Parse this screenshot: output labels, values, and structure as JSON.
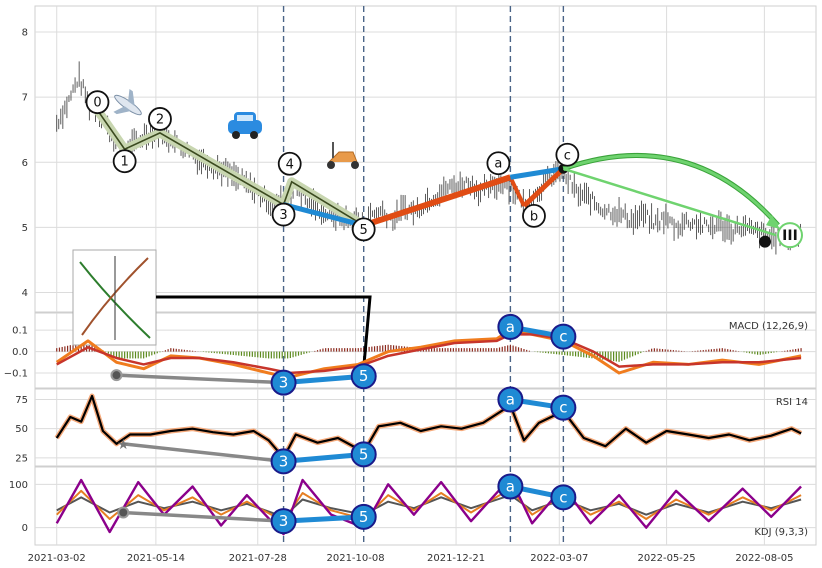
{
  "chart_data": {
    "type": "line",
    "panels": [
      {
        "id": "price",
        "ylim": [
          3.7,
          8.4
        ],
        "yticks": [
          4,
          5,
          6,
          7,
          8
        ]
      },
      {
        "id": "macd",
        "label": "MACD (12,26,9)",
        "ylim": [
          -0.17,
          0.18
        ],
        "yticks": [
          0.1,
          0.0,
          -0.1
        ],
        "ytick_labels": [
          "0.1",
          "0.0",
          "−0.1"
        ]
      },
      {
        "id": "rsi",
        "label": "RSI 14",
        "ylim": [
          18,
          84
        ],
        "yticks": [
          75,
          50,
          25
        ]
      },
      {
        "id": "kdj",
        "label": "KDJ (9,3,3)",
        "ylim": [
          -40,
          140
        ],
        "yticks": [
          100,
          0
        ]
      }
    ],
    "x_range": [
      "2021-02-14",
      "2022-09-12"
    ],
    "x_ticks": [
      "2021-03-02",
      "2021-05-14",
      "2021-07-28",
      "2021-10-08",
      "2021-12-21",
      "2022-03-07",
      "2022-05-25",
      "2022-08-05"
    ],
    "vlines": [
      "2021-08-16",
      "2021-10-14",
      "2022-01-30",
      "2022-03-10"
    ],
    "grid": true,
    "price_series": [
      [
        "2021-03-02",
        6.6
      ],
      [
        "2021-03-10",
        6.9
      ],
      [
        "2021-03-18",
        7.3
      ],
      [
        "2021-03-26",
        6.9
      ],
      [
        "2021-04-03",
        6.8
      ],
      [
        "2021-04-11",
        6.4
      ],
      [
        "2021-04-19",
        6.2
      ],
      [
        "2021-04-27",
        6.25
      ],
      [
        "2021-05-05",
        6.4
      ],
      [
        "2021-05-13",
        6.5
      ],
      [
        "2021-05-21",
        6.4
      ],
      [
        "2021-05-29",
        6.3
      ],
      [
        "2021-06-06",
        6.2
      ],
      [
        "2021-06-14",
        6.05
      ],
      [
        "2021-06-22",
        6.0
      ],
      [
        "2021-06-30",
        5.9
      ],
      [
        "2021-07-08",
        5.8
      ],
      [
        "2021-07-16",
        5.7
      ],
      [
        "2021-07-24",
        5.6
      ],
      [
        "2021-08-01",
        5.45
      ],
      [
        "2021-08-09",
        5.35
      ],
      [
        "2021-08-17",
        5.5
      ],
      [
        "2021-08-25",
        5.6
      ],
      [
        "2021-09-02",
        5.4
      ],
      [
        "2021-09-10",
        5.3
      ],
      [
        "2021-09-18",
        5.2
      ],
      [
        "2021-09-26",
        5.15
      ],
      [
        "2021-10-04",
        5.1
      ],
      [
        "2021-10-12",
        5.05
      ],
      [
        "2021-10-20",
        5.2
      ],
      [
        "2021-10-28",
        5.25
      ],
      [
        "2021-11-05",
        5.1
      ],
      [
        "2021-11-13",
        5.3
      ],
      [
        "2021-11-21",
        5.25
      ],
      [
        "2021-11-29",
        5.4
      ],
      [
        "2021-12-07",
        5.5
      ],
      [
        "2021-12-15",
        5.6
      ],
      [
        "2021-12-23",
        5.65
      ],
      [
        "2021-12-31",
        5.7
      ],
      [
        "2022-01-08",
        5.55
      ],
      [
        "2022-01-16",
        5.6
      ],
      [
        "2022-01-24",
        5.7
      ],
      [
        "2022-02-01",
        5.6
      ],
      [
        "2022-02-09",
        5.35
      ],
      [
        "2022-02-17",
        5.5
      ],
      [
        "2022-02-25",
        5.7
      ],
      [
        "2022-03-05",
        5.85
      ],
      [
        "2022-03-13",
        5.75
      ],
      [
        "2022-03-21",
        5.5
      ],
      [
        "2022-03-29",
        5.45
      ],
      [
        "2022-04-06",
        5.3
      ],
      [
        "2022-04-14",
        5.25
      ],
      [
        "2022-04-22",
        5.2
      ],
      [
        "2022-04-30",
        5.1
      ],
      [
        "2022-05-08",
        5.2
      ],
      [
        "2022-05-16",
        5.05
      ],
      [
        "2022-05-24",
        5.15
      ],
      [
        "2022-06-01",
        5.0
      ],
      [
        "2022-06-09",
        5.1
      ],
      [
        "2022-06-17",
        5.05
      ],
      [
        "2022-06-25",
        5.0
      ],
      [
        "2022-07-03",
        5.05
      ],
      [
        "2022-07-11",
        4.95
      ],
      [
        "2022-07-19",
        5.0
      ],
      [
        "2022-07-27",
        4.95
      ],
      [
        "2022-08-04",
        4.9
      ],
      [
        "2022-08-12",
        4.85
      ],
      [
        "2022-08-20",
        4.8
      ],
      [
        "2022-08-28",
        4.85
      ],
      [
        "2022-09-01",
        4.9
      ]
    ],
    "wave_points": [
      {
        "label": "0",
        "date": "2021-04-01",
        "value": 6.8
      },
      {
        "label": "1",
        "date": "2021-04-21",
        "value": 6.2
      },
      {
        "label": "2",
        "date": "2021-05-17",
        "value": 6.45
      },
      {
        "label": "3",
        "date": "2021-08-16",
        "value": 5.35
      },
      {
        "label": "4",
        "date": "2021-08-22",
        "value": 5.7
      },
      {
        "label": "5",
        "date": "2021-10-14",
        "value": 5.03
      },
      {
        "label": "a",
        "date": "2022-01-30",
        "value": 5.77
      },
      {
        "label": "b",
        "date": "2022-02-09",
        "value": 5.33
      },
      {
        "label": "c",
        "date": "2022-03-10",
        "value": 5.9
      }
    ],
    "macd": {
      "macd_line": [
        [
          "2021-03-02",
          -0.05
        ],
        [
          "2021-03-25",
          0.05
        ],
        [
          "2021-04-15",
          -0.05
        ],
        [
          "2021-05-05",
          -0.08
        ],
        [
          "2021-05-25",
          -0.02
        ],
        [
          "2021-06-15",
          -0.03
        ],
        [
          "2021-07-10",
          -0.06
        ],
        [
          "2021-08-05",
          -0.1
        ],
        [
          "2021-08-20",
          -0.12
        ],
        [
          "2021-09-15",
          -0.08
        ],
        [
          "2021-10-10",
          -0.06
        ],
        [
          "2021-11-01",
          0.0
        ],
        [
          "2021-11-25",
          0.02
        ],
        [
          "2021-12-20",
          0.05
        ],
        [
          "2022-01-20",
          0.06
        ],
        [
          "2022-01-30",
          0.1
        ],
        [
          "2022-02-15",
          0.08
        ],
        [
          "2022-03-10",
          0.05
        ],
        [
          "2022-04-01",
          -0.02
        ],
        [
          "2022-04-20",
          -0.1
        ],
        [
          "2022-05-15",
          -0.05
        ],
        [
          "2022-06-10",
          -0.06
        ],
        [
          "2022-07-05",
          -0.04
        ],
        [
          "2022-08-01",
          -0.06
        ],
        [
          "2022-09-01",
          -0.02
        ]
      ],
      "signal_line": [
        [
          "2021-03-02",
          -0.06
        ],
        [
          "2021-03-25",
          0.02
        ],
        [
          "2021-04-15",
          -0.03
        ],
        [
          "2021-05-05",
          -0.06
        ],
        [
          "2021-05-25",
          -0.03
        ],
        [
          "2021-06-15",
          -0.03
        ],
        [
          "2021-07-10",
          -0.05
        ],
        [
          "2021-08-05",
          -0.08
        ],
        [
          "2021-08-20",
          -0.1
        ],
        [
          "2021-09-15",
          -0.09
        ],
        [
          "2021-10-10",
          -0.07
        ],
        [
          "2021-11-01",
          -0.02
        ],
        [
          "2021-11-25",
          0.01
        ],
        [
          "2021-12-20",
          0.04
        ],
        [
          "2022-01-20",
          0.05
        ],
        [
          "2022-01-30",
          0.08
        ],
        [
          "2022-02-15",
          0.08
        ],
        [
          "2022-03-10",
          0.06
        ],
        [
          "2022-04-01",
          0.0
        ],
        [
          "2022-04-20",
          -0.07
        ],
        [
          "2022-05-15",
          -0.06
        ],
        [
          "2022-06-10",
          -0.06
        ],
        [
          "2022-07-05",
          -0.05
        ],
        [
          "2022-08-01",
          -0.05
        ],
        [
          "2022-09-01",
          -0.03
        ]
      ]
    },
    "rsi": [
      [
        "2021-03-02",
        42
      ],
      [
        "2021-03-12",
        60
      ],
      [
        "2021-03-20",
        56
      ],
      [
        "2021-03-28",
        78
      ],
      [
        "2021-04-05",
        48
      ],
      [
        "2021-04-15",
        37
      ],
      [
        "2021-04-25",
        45
      ],
      [
        "2021-05-10",
        45
      ],
      [
        "2021-05-25",
        48
      ],
      [
        "2021-06-10",
        50
      ],
      [
        "2021-06-25",
        47
      ],
      [
        "2021-07-10",
        45
      ],
      [
        "2021-07-25",
        48
      ],
      [
        "2021-08-05",
        40
      ],
      [
        "2021-08-16",
        25
      ],
      [
        "2021-08-25",
        45
      ],
      [
        "2021-09-10",
        38
      ],
      [
        "2021-09-25",
        42
      ],
      [
        "2021-10-14",
        30
      ],
      [
        "2021-10-25",
        52
      ],
      [
        "2021-11-10",
        55
      ],
      [
        "2021-11-25",
        48
      ],
      [
        "2021-12-10",
        52
      ],
      [
        "2021-12-25",
        50
      ],
      [
        "2022-01-10",
        55
      ],
      [
        "2022-01-30",
        70
      ],
      [
        "2022-02-09",
        40
      ],
      [
        "2022-02-20",
        55
      ],
      [
        "2022-03-10",
        65
      ],
      [
        "2022-03-25",
        42
      ],
      [
        "2022-04-10",
        35
      ],
      [
        "2022-04-25",
        50
      ],
      [
        "2022-05-10",
        38
      ],
      [
        "2022-05-25",
        48
      ],
      [
        "2022-06-10",
        45
      ],
      [
        "2022-06-25",
        42
      ],
      [
        "2022-07-10",
        45
      ],
      [
        "2022-07-25",
        40
      ],
      [
        "2022-08-10",
        44
      ],
      [
        "2022-08-25",
        50
      ],
      [
        "2022-09-01",
        46
      ]
    ],
    "kdj": {
      "k": [
        [
          "2021-03-02",
          30
        ],
        [
          "2021-03-20",
          85
        ],
        [
          "2021-04-10",
          20
        ],
        [
          "2021-05-01",
          75
        ],
        [
          "2021-05-20",
          40
        ],
        [
          "2021-06-10",
          70
        ],
        [
          "2021-07-01",
          30
        ],
        [
          "2021-07-20",
          60
        ],
        [
          "2021-08-16",
          15
        ],
        [
          "2021-08-30",
          80
        ],
        [
          "2021-09-20",
          40
        ],
        [
          "2021-10-14",
          20
        ],
        [
          "2021-11-01",
          75
        ],
        [
          "2021-11-20",
          40
        ],
        [
          "2021-12-10",
          80
        ],
        [
          "2022-01-01",
          35
        ],
        [
          "2022-01-30",
          90
        ],
        [
          "2022-02-15",
          30
        ],
        [
          "2022-03-10",
          75
        ],
        [
          "2022-03-30",
          30
        ],
        [
          "2022-04-20",
          60
        ],
        [
          "2022-05-10",
          20
        ],
        [
          "2022-06-01",
          65
        ],
        [
          "2022-06-25",
          30
        ],
        [
          "2022-07-20",
          70
        ],
        [
          "2022-08-10",
          40
        ],
        [
          "2022-09-01",
          75
        ]
      ],
      "d": [
        [
          "2021-03-02",
          40
        ],
        [
          "2021-03-20",
          70
        ],
        [
          "2021-04-10",
          35
        ],
        [
          "2021-05-01",
          60
        ],
        [
          "2021-05-20",
          45
        ],
        [
          "2021-06-10",
          60
        ],
        [
          "2021-07-01",
          40
        ],
        [
          "2021-07-20",
          55
        ],
        [
          "2021-08-16",
          25
        ],
        [
          "2021-08-30",
          65
        ],
        [
          "2021-09-20",
          45
        ],
        [
          "2021-10-14",
          30
        ],
        [
          "2021-11-01",
          60
        ],
        [
          "2021-11-20",
          45
        ],
        [
          "2021-12-10",
          70
        ],
        [
          "2022-01-01",
          45
        ],
        [
          "2022-01-30",
          75
        ],
        [
          "2022-02-15",
          40
        ],
        [
          "2022-03-10",
          65
        ],
        [
          "2022-03-30",
          40
        ],
        [
          "2022-04-20",
          55
        ],
        [
          "2022-05-10",
          30
        ],
        [
          "2022-06-01",
          55
        ],
        [
          "2022-06-25",
          35
        ],
        [
          "2022-07-20",
          60
        ],
        [
          "2022-08-10",
          45
        ],
        [
          "2022-09-01",
          65
        ]
      ],
      "j": [
        [
          "2021-03-02",
          10
        ],
        [
          "2021-03-20",
          110
        ],
        [
          "2021-04-10",
          -10
        ],
        [
          "2021-05-01",
          105
        ],
        [
          "2021-05-20",
          30
        ],
        [
          "2021-06-10",
          95
        ],
        [
          "2021-07-01",
          5
        ],
        [
          "2021-07-20",
          75
        ],
        [
          "2021-08-16",
          -15
        ],
        [
          "2021-08-30",
          110
        ],
        [
          "2021-09-20",
          30
        ],
        [
          "2021-10-14",
          0
        ],
        [
          "2021-11-01",
          100
        ],
        [
          "2021-11-20",
          30
        ],
        [
          "2021-12-10",
          105
        ],
        [
          "2022-01-01",
          15
        ],
        [
          "2022-01-30",
          115
        ],
        [
          "2022-02-15",
          10
        ],
        [
          "2022-03-10",
          95
        ],
        [
          "2022-03-30",
          10
        ],
        [
          "2022-04-20",
          75
        ],
        [
          "2022-05-10",
          0
        ],
        [
          "2022-06-01",
          85
        ],
        [
          "2022-06-25",
          15
        ],
        [
          "2022-07-20",
          90
        ],
        [
          "2022-08-10",
          25
        ],
        [
          "2022-09-01",
          95
        ]
      ]
    },
    "divergence_markers": {
      "macd": [
        {
          "label": "3",
          "date": "2021-08-16",
          "value": -0.145
        },
        {
          "label": "5",
          "date": "2021-10-14",
          "value": -0.115
        },
        {
          "label": "a",
          "date": "2022-01-30",
          "value": 0.115
        },
        {
          "label": "c",
          "date": "2022-03-10",
          "value": 0.07
        }
      ],
      "rsi": [
        {
          "label": "3",
          "date": "2021-08-16",
          "value": 22
        },
        {
          "label": "5",
          "date": "2021-10-14",
          "value": 28
        },
        {
          "label": "a",
          "date": "2022-01-30",
          "value": 75
        },
        {
          "label": "c",
          "date": "2022-03-10",
          "value": 68
        }
      ],
      "kdj": [
        {
          "label": "3",
          "date": "2021-08-16",
          "value": 15
        },
        {
          "label": "5",
          "date": "2021-10-14",
          "value": 25
        },
        {
          "label": "a",
          "date": "2022-01-30",
          "value": 95
        },
        {
          "label": "c",
          "date": "2022-03-10",
          "value": 70
        }
      ]
    },
    "target_label": "III",
    "colors": {
      "price_bar": "#333333",
      "impulse_wave": "#3b4a1f",
      "impulse_band": "#c8d6b0",
      "leg_5": "#1f8ad4",
      "corrective_up": "#e04c14",
      "corrective_down": "#1f8ad4",
      "target_arrow": "#6fd36f",
      "vline": "#4a6487",
      "macd_line": "#f07c1e",
      "signal_line": "#c7352b",
      "rsi_line": "#000000",
      "rsi_halo": "#f5a97a",
      "kdj_k": "#e67e22",
      "kdj_d": "#555555",
      "kdj_j": "#8b008b",
      "marker_fill": "#1f8ad4",
      "marker_stroke": "#1a1a8a",
      "divergence_gray": "#888888"
    },
    "icons": [
      "airplane-icon",
      "car-icon",
      "scooter-icon",
      "chart-thumbnail"
    ]
  }
}
